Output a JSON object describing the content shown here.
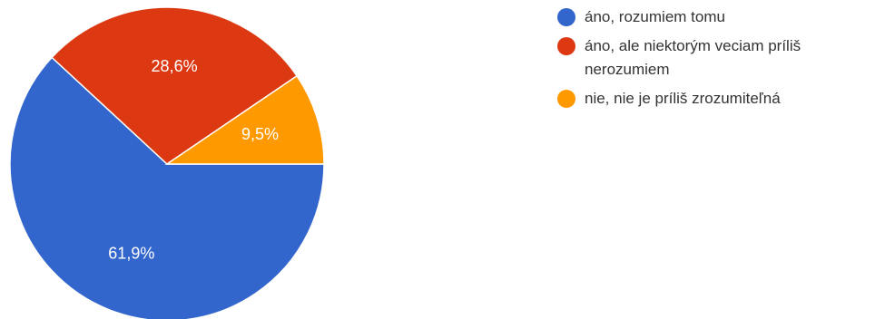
{
  "chart_data": {
    "type": "pie",
    "title": "",
    "slices": [
      {
        "label": "áno, rozumiem tomu",
        "value": 61.9,
        "display": "61,9%",
        "color": "#3366cc"
      },
      {
        "label": "áno, ale niektorým veciam príliš nerozumiem",
        "value": 28.6,
        "display": "28,6%",
        "color": "#dc3912"
      },
      {
        "label": "nie, nie je príliš zrozumiteľná",
        "value": 9.5,
        "display": "9,5%",
        "color": "#ff9900"
      }
    ],
    "legend_position": "right"
  }
}
